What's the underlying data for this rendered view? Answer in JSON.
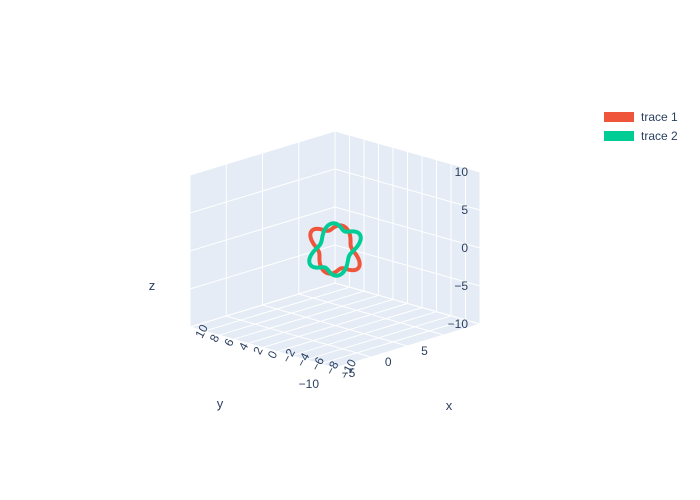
{
  "chart_data": {
    "type": "line3d",
    "title": "",
    "axes": {
      "x": {
        "label": "x",
        "range": [
          -10,
          10
        ],
        "ticks": [
          "−10",
          "−8",
          "−6",
          "−4",
          "−2",
          "0",
          "2",
          "4",
          "6",
          "8",
          "10"
        ]
      },
      "y": {
        "label": "y",
        "range": [
          -10,
          10
        ],
        "ticks": [
          "−10",
          "−5",
          "0",
          "5"
        ]
      },
      "z": {
        "label": "z",
        "range": [
          -10,
          10
        ],
        "ticks": [
          "10",
          "5",
          "0",
          "−5",
          "−10"
        ]
      }
    },
    "series": [
      {
        "name": "trace 1",
        "color": "#EF553B",
        "shape": "closed wavy ring in the x–z plane at y = 0, radius ≈ 3"
      },
      {
        "name": "trace 2",
        "color": "#00CC96",
        "shape": "closed wavy ring in the y–z plane at x = 0, radius ≈ 3"
      }
    ],
    "legend": {
      "placement": "top-right"
    },
    "grid": true
  }
}
